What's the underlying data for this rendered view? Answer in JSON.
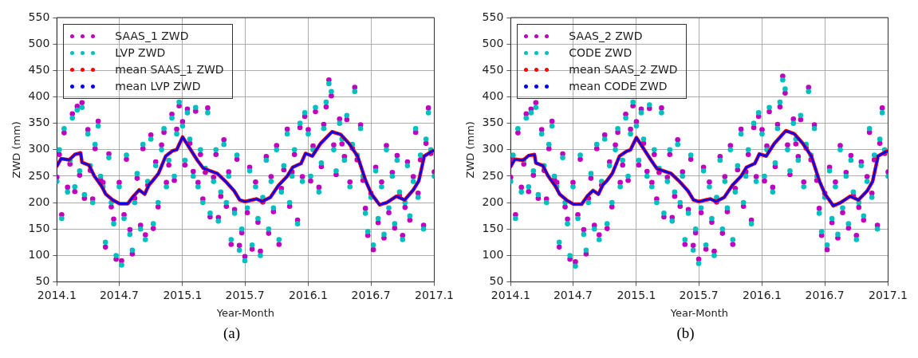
{
  "chart_data": [
    {
      "type": "scatter",
      "xlabel": "Year-Month",
      "ylabel": "ZWD (mm)",
      "annotations": [
        "(a)"
      ],
      "legend": "top left",
      "grid": true,
      "marker": "circle",
      "xlim": [
        "2014-01",
        "2017-01"
      ],
      "ylim": [
        50,
        550
      ],
      "xticks": [
        {
          "value": "2014-01",
          "label": "2014.1"
        },
        {
          "value": "2014-07",
          "label": "2014.7"
        },
        {
          "value": "2015-01",
          "label": "2015.1"
        },
        {
          "value": "2015-07",
          "label": "2015.7"
        },
        {
          "value": "2016-01",
          "label": "2016.1"
        },
        {
          "value": "2016-07",
          "label": "2016.7"
        },
        {
          "value": "2017-01",
          "label": "2017.1"
        }
      ],
      "yticks": [
        50,
        100,
        150,
        200,
        250,
        300,
        350,
        400,
        450,
        500,
        550
      ],
      "x": [
        "2014-01-01",
        "2014-01-08",
        "2014-01-15",
        "2014-01-22",
        "2014-02-01",
        "2014-02-08",
        "2014-02-15",
        "2014-02-22",
        "2014-03-01",
        "2014-03-08",
        "2014-03-15",
        "2014-03-22",
        "2014-04-01",
        "2014-04-08",
        "2014-04-15",
        "2014-04-22",
        "2014-05-01",
        "2014-05-08",
        "2014-05-15",
        "2014-05-22",
        "2014-06-01",
        "2014-06-08",
        "2014-06-15",
        "2014-06-22",
        "2014-07-01",
        "2014-07-08",
        "2014-07-15",
        "2014-07-22",
        "2014-08-01",
        "2014-08-08",
        "2014-08-15",
        "2014-08-22",
        "2014-09-01",
        "2014-09-08",
        "2014-09-15",
        "2014-09-22",
        "2014-10-01",
        "2014-10-08",
        "2014-10-15",
        "2014-10-22",
        "2014-11-01",
        "2014-11-08",
        "2014-11-15",
        "2014-11-22",
        "2014-12-01",
        "2014-12-08",
        "2014-12-15",
        "2014-12-22",
        "2015-01-01",
        "2015-01-08",
        "2015-01-15",
        "2015-01-22",
        "2015-02-01",
        "2015-02-08",
        "2015-02-15",
        "2015-02-22",
        "2015-03-01",
        "2015-03-08",
        "2015-03-15",
        "2015-03-22",
        "2015-04-01",
        "2015-04-08",
        "2015-04-15",
        "2015-04-22",
        "2015-05-01",
        "2015-05-08",
        "2015-05-15",
        "2015-05-22",
        "2015-06-01",
        "2015-06-08",
        "2015-06-15",
        "2015-06-22",
        "2015-07-01",
        "2015-07-08",
        "2015-07-15",
        "2015-07-22",
        "2015-08-01",
        "2015-08-08",
        "2015-08-15",
        "2015-08-22",
        "2015-09-01",
        "2015-09-08",
        "2015-09-15",
        "2015-09-22",
        "2015-10-01",
        "2015-10-08",
        "2015-10-15",
        "2015-10-22",
        "2015-11-01",
        "2015-11-08",
        "2015-11-15",
        "2015-11-22",
        "2015-12-01",
        "2015-12-08",
        "2015-12-15",
        "2015-12-22",
        "2016-01-01",
        "2016-01-08",
        "2016-01-15",
        "2016-01-22",
        "2016-02-01",
        "2016-02-08",
        "2016-02-15",
        "2016-02-22",
        "2016-03-01",
        "2016-03-08",
        "2016-03-15",
        "2016-03-22",
        "2016-04-01",
        "2016-04-08",
        "2016-04-15",
        "2016-04-22",
        "2016-05-01",
        "2016-05-08",
        "2016-05-15",
        "2016-05-22",
        "2016-06-01",
        "2016-06-08",
        "2016-06-15",
        "2016-06-22",
        "2016-07-01",
        "2016-07-08",
        "2016-07-15",
        "2016-07-22",
        "2016-08-01",
        "2016-08-08",
        "2016-08-15",
        "2016-08-22",
        "2016-09-01",
        "2016-09-08",
        "2016-09-15",
        "2016-09-22",
        "2016-10-01",
        "2016-10-08",
        "2016-10-15",
        "2016-10-22",
        "2016-11-01",
        "2016-11-08",
        "2016-11-15",
        "2016-11-22",
        "2016-12-01",
        "2016-12-08",
        "2016-12-15",
        "2016-12-22",
        "2017-01-01"
      ],
      "series": [
        {
          "name": "SAAS_1 ZWD",
          "color": "#bf00bf",
          "values": [
            248,
            291,
            177,
            332,
            229,
            273,
            368,
            221,
            382,
            252,
            389,
            208,
            338,
            261,
            207,
            302,
            354,
            243,
            238,
            116,
            292,
            192,
            169,
            93,
            238,
            90,
            177,
            282,
            149,
            103,
            208,
            246,
            157,
            302,
            139,
            233,
            328,
            151,
            277,
            192,
            309,
            333,
            238,
            271,
            367,
            242,
            339,
            383,
            353,
            271,
            377,
            312,
            259,
            373,
            238,
            291,
            207,
            257,
            379,
            173,
            248,
            291,
            172,
            212,
            319,
            193,
            258,
            121,
            187,
            282,
            119,
            143,
            98,
            181,
            267,
            112,
            239,
            163,
            108,
            201,
            287,
            142,
            249,
            183,
            308,
            121,
            227,
            262,
            339,
            193,
            258,
            291,
            167,
            342,
            249,
            363,
            338,
            241,
            307,
            372,
            229,
            268,
            348,
            381,
            432,
            402,
            309,
            253,
            358,
            311,
            287,
            357,
            239,
            303,
            418,
            281,
            347,
            242,
            189,
            138,
            218,
            111,
            267,
            162,
            239,
            133,
            308,
            181,
            257,
            152,
            289,
            213,
            138,
            191,
            277,
            167,
            249,
            333,
            218,
            281,
            157,
            312,
            379,
            293,
            258
          ]
        },
        {
          "name": "LVP ZWD",
          "color": "#00bfbf",
          "values": [
            240,
            300,
            170,
            340,
            220,
            280,
            360,
            230,
            375,
            260,
            380,
            215,
            330,
            270,
            200,
            310,
            345,
            250,
            230,
            125,
            285,
            200,
            160,
            100,
            230,
            82,
            170,
            290,
            140,
            110,
            200,
            255,
            150,
            310,
            130,
            240,
            320,
            160,
            270,
            200,
            300,
            340,
            230,
            280,
            360,
            250,
            330,
            390,
            345,
            280,
            370,
            320,
            250,
            380,
            230,
            300,
            200,
            265,
            370,
            180,
            240,
            300,
            165,
            220,
            310,
            200,
            250,
            130,
            180,
            290,
            110,
            150,
            90,
            190,
            260,
            120,
            230,
            170,
            100,
            210,
            280,
            150,
            240,
            190,
            300,
            130,
            220,
            270,
            330,
            200,
            250,
            300,
            160,
            350,
            240,
            370,
            330,
            250,
            300,
            380,
            220,
            275,
            340,
            390,
            425,
            410,
            300,
            260,
            350,
            320,
            280,
            365,
            230,
            310,
            410,
            290,
            340,
            250,
            180,
            145,
            210,
            120,
            260,
            170,
            230,
            140,
            300,
            190,
            250,
            160,
            280,
            220,
            130,
            200,
            270,
            175,
            240,
            340,
            210,
            290,
            150,
            320,
            370,
            300,
            250
          ]
        },
        {
          "name": "mean SAAS_1 ZWD",
          "color": "#ff0000",
          "type": "line",
          "marker": "none",
          "x": [
            "2014-01-01",
            "2014-01-13",
            "2014-02-06",
            "2014-02-22",
            "2014-03-11",
            "2014-03-15",
            "2014-04-04",
            "2014-04-20",
            "2014-05-11",
            "2014-05-23",
            "2014-06-12",
            "2014-07-02",
            "2014-07-26",
            "2014-08-11",
            "2014-08-28",
            "2014-09-13",
            "2014-09-25",
            "2014-10-07",
            "2014-10-23",
            "2014-11-13",
            "2014-12-03",
            "2014-12-15",
            "2015-01-01",
            "2015-02-14",
            "2015-03-02",
            "2015-04-12",
            "2015-05-06",
            "2015-05-31",
            "2015-06-16",
            "2015-07-02",
            "2015-08-04",
            "2015-08-20",
            "2015-09-13",
            "2015-10-07",
            "2015-11-01",
            "2015-11-17",
            "2015-12-11",
            "2015-12-24",
            "2016-01-13",
            "2016-02-06",
            "2016-03-10",
            "2016-04-04",
            "2016-04-28",
            "2016-05-23",
            "2016-06-16",
            "2016-07-02",
            "2016-07-26",
            "2016-08-16",
            "2016-09-13",
            "2016-10-07",
            "2016-11-01",
            "2016-11-17",
            "2016-12-03",
            "2016-12-28"
          ],
          "values": [
            269,
            283,
            281,
            291,
            294,
            276,
            271,
            250,
            231,
            216,
            205,
            198,
            198,
            212,
            224,
            216,
            233,
            242,
            255,
            288,
            298,
            300,
            324,
            279,
            265,
            255,
            240,
            222,
            205,
            202,
            207,
            202,
            210,
            233,
            250,
            267,
            274,
            293,
            288,
            312,
            334,
            329,
            312,
            288,
            241,
            217,
            196,
            200,
            212,
            205,
            224,
            241,
            288,
            298
          ]
        },
        {
          "name": "mean LVP ZWD",
          "color": "#0000ff",
          "type": "line",
          "marker": "none",
          "x": [
            "2014-01-01",
            "2014-01-13",
            "2014-02-06",
            "2014-02-22",
            "2014-03-11",
            "2014-03-15",
            "2014-04-04",
            "2014-04-20",
            "2014-05-11",
            "2014-05-23",
            "2014-06-12",
            "2014-07-02",
            "2014-07-26",
            "2014-08-11",
            "2014-08-28",
            "2014-09-13",
            "2014-09-25",
            "2014-10-07",
            "2014-10-23",
            "2014-11-13",
            "2014-12-03",
            "2014-12-15",
            "2015-01-01",
            "2015-02-14",
            "2015-03-02",
            "2015-04-12",
            "2015-05-06",
            "2015-05-31",
            "2015-06-16",
            "2015-07-02",
            "2015-08-04",
            "2015-08-20",
            "2015-09-13",
            "2015-10-07",
            "2015-11-01",
            "2015-11-17",
            "2015-12-11",
            "2015-12-24",
            "2016-01-13",
            "2016-02-06",
            "2016-03-10",
            "2016-04-04",
            "2016-04-28",
            "2016-05-23",
            "2016-06-16",
            "2016-07-02",
            "2016-07-26",
            "2016-08-16",
            "2016-09-13",
            "2016-10-07",
            "2016-11-01",
            "2016-11-17",
            "2016-12-03",
            "2016-12-28"
          ],
          "values": [
            269,
            283,
            281,
            291,
            294,
            276,
            271,
            250,
            231,
            216,
            205,
            198,
            198,
            212,
            224,
            216,
            233,
            242,
            255,
            288,
            298,
            300,
            324,
            279,
            265,
            255,
            240,
            222,
            205,
            202,
            207,
            202,
            210,
            233,
            250,
            267,
            274,
            293,
            288,
            312,
            334,
            329,
            312,
            288,
            241,
            217,
            196,
            200,
            212,
            205,
            224,
            241,
            288,
            298
          ]
        }
      ]
    },
    {
      "type": "scatter",
      "xlabel": "Year-Month",
      "ylabel": "ZWD (mm)",
      "annotations": [
        "(b)"
      ],
      "legend": "top left",
      "grid": true,
      "marker": "circle",
      "xlim": [
        "2014-01",
        "2017-01"
      ],
      "ylim": [
        50,
        550
      ],
      "xticks": [
        {
          "value": "2014-01",
          "label": "2014.1"
        },
        {
          "value": "2014-07",
          "label": "2014.7"
        },
        {
          "value": "2015-01",
          "label": "2015.1"
        },
        {
          "value": "2015-07",
          "label": "2015.7"
        },
        {
          "value": "2016-01",
          "label": "2016.1"
        },
        {
          "value": "2016-07",
          "label": "2016.7"
        },
        {
          "value": "2017-01",
          "label": "2017.1"
        }
      ],
      "yticks": [
        50,
        100,
        150,
        200,
        250,
        300,
        350,
        400,
        450,
        500,
        550
      ],
      "x": [
        "2014-01-01",
        "2014-01-08",
        "2014-01-15",
        "2014-01-22",
        "2014-02-01",
        "2014-02-08",
        "2014-02-15",
        "2014-02-22",
        "2014-03-01",
        "2014-03-08",
        "2014-03-15",
        "2014-03-22",
        "2014-04-01",
        "2014-04-08",
        "2014-04-15",
        "2014-04-22",
        "2014-05-01",
        "2014-05-08",
        "2014-05-15",
        "2014-05-22",
        "2014-06-01",
        "2014-06-08",
        "2014-06-15",
        "2014-06-22",
        "2014-07-01",
        "2014-07-08",
        "2014-07-15",
        "2014-07-22",
        "2014-08-01",
        "2014-08-08",
        "2014-08-15",
        "2014-08-22",
        "2014-09-01",
        "2014-09-08",
        "2014-09-15",
        "2014-09-22",
        "2014-10-01",
        "2014-10-08",
        "2014-10-15",
        "2014-10-22",
        "2014-11-01",
        "2014-11-08",
        "2014-11-15",
        "2014-11-22",
        "2014-12-01",
        "2014-12-08",
        "2014-12-15",
        "2014-12-22",
        "2015-01-01",
        "2015-01-08",
        "2015-01-15",
        "2015-01-22",
        "2015-02-01",
        "2015-02-08",
        "2015-02-15",
        "2015-02-22",
        "2015-03-01",
        "2015-03-08",
        "2015-03-15",
        "2015-03-22",
        "2015-04-01",
        "2015-04-08",
        "2015-04-15",
        "2015-04-22",
        "2015-05-01",
        "2015-05-08",
        "2015-05-15",
        "2015-05-22",
        "2015-06-01",
        "2015-06-08",
        "2015-06-15",
        "2015-06-22",
        "2015-07-01",
        "2015-07-08",
        "2015-07-15",
        "2015-07-22",
        "2015-08-01",
        "2015-08-08",
        "2015-08-15",
        "2015-08-22",
        "2015-09-01",
        "2015-09-08",
        "2015-09-15",
        "2015-09-22",
        "2015-10-01",
        "2015-10-08",
        "2015-10-15",
        "2015-10-22",
        "2015-11-01",
        "2015-11-08",
        "2015-11-15",
        "2015-11-22",
        "2015-12-01",
        "2015-12-08",
        "2015-12-15",
        "2015-12-22",
        "2016-01-01",
        "2016-01-08",
        "2016-01-15",
        "2016-01-22",
        "2016-02-01",
        "2016-02-08",
        "2016-02-15",
        "2016-02-22",
        "2016-03-01",
        "2016-03-08",
        "2016-03-15",
        "2016-03-22",
        "2016-04-01",
        "2016-04-08",
        "2016-04-15",
        "2016-04-22",
        "2016-05-01",
        "2016-05-08",
        "2016-05-15",
        "2016-05-22",
        "2016-06-01",
        "2016-06-08",
        "2016-06-15",
        "2016-06-22",
        "2016-07-01",
        "2016-07-08",
        "2016-07-15",
        "2016-07-22",
        "2016-08-01",
        "2016-08-08",
        "2016-08-15",
        "2016-08-22",
        "2016-09-01",
        "2016-09-08",
        "2016-09-15",
        "2016-09-22",
        "2016-10-01",
        "2016-10-08",
        "2016-10-15",
        "2016-10-22",
        "2016-11-01",
        "2016-11-08",
        "2016-11-15",
        "2016-11-22",
        "2016-12-01",
        "2016-12-08",
        "2016-12-15",
        "2016-12-22",
        "2017-01-01"
      ],
      "series": [
        {
          "name": "SAAS_2 ZWD",
          "color": "#bf00bf",
          "values": [
            248,
            281,
            177,
            332,
            229,
            273,
            368,
            221,
            377,
            252,
            389,
            208,
            338,
            261,
            207,
            302,
            354,
            243,
            238,
            116,
            292,
            192,
            169,
            93,
            238,
            88,
            177,
            282,
            149,
            103,
            208,
            246,
            157,
            302,
            139,
            233,
            328,
            151,
            277,
            192,
            309,
            333,
            238,
            271,
            367,
            242,
            339,
            383,
            353,
            271,
            377,
            312,
            259,
            378,
            238,
            291,
            207,
            257,
            379,
            173,
            248,
            291,
            172,
            212,
            319,
            193,
            258,
            121,
            187,
            282,
            119,
            143,
            93,
            181,
            267,
            112,
            239,
            163,
            108,
            201,
            287,
            142,
            249,
            183,
            308,
            121,
            227,
            262,
            339,
            193,
            258,
            291,
            167,
            342,
            249,
            363,
            338,
            241,
            307,
            372,
            229,
            268,
            348,
            381,
            439,
            407,
            309,
            253,
            358,
            311,
            287,
            357,
            239,
            303,
            418,
            281,
            347,
            242,
            189,
            138,
            218,
            111,
            267,
            162,
            239,
            133,
            308,
            181,
            257,
            152,
            289,
            213,
            138,
            191,
            277,
            167,
            249,
            333,
            218,
            281,
            157,
            312,
            379,
            293,
            258
          ]
        },
        {
          "name": "CODE ZWD",
          "color": "#00bfbf",
          "values": [
            240,
            290,
            170,
            340,
            220,
            280,
            360,
            230,
            370,
            260,
            380,
            215,
            330,
            270,
            200,
            310,
            345,
            250,
            230,
            125,
            285,
            200,
            160,
            100,
            230,
            80,
            170,
            290,
            140,
            110,
            200,
            255,
            150,
            310,
            130,
            240,
            320,
            160,
            270,
            200,
            300,
            340,
            230,
            280,
            360,
            250,
            330,
            390,
            345,
            280,
            370,
            320,
            250,
            385,
            230,
            300,
            200,
            265,
            370,
            180,
            240,
            300,
            165,
            220,
            310,
            200,
            250,
            130,
            180,
            290,
            110,
            150,
            85,
            190,
            260,
            120,
            230,
            170,
            100,
            210,
            280,
            150,
            240,
            190,
            300,
            130,
            220,
            270,
            330,
            200,
            250,
            300,
            160,
            350,
            240,
            370,
            330,
            250,
            300,
            380,
            220,
            275,
            340,
            390,
            432,
            415,
            300,
            260,
            350,
            320,
            280,
            365,
            230,
            310,
            410,
            290,
            340,
            250,
            180,
            145,
            210,
            120,
            260,
            170,
            230,
            140,
            300,
            190,
            250,
            160,
            280,
            220,
            130,
            200,
            270,
            175,
            240,
            340,
            210,
            290,
            150,
            320,
            370,
            300,
            250
          ]
        },
        {
          "name": "mean SAAS_2 ZWD",
          "color": "#ff0000",
          "type": "line",
          "marker": "none",
          "x": [
            "2014-01-01",
            "2014-01-13",
            "2014-02-06",
            "2014-02-22",
            "2014-03-11",
            "2014-03-15",
            "2014-04-04",
            "2014-04-20",
            "2014-05-11",
            "2014-05-23",
            "2014-06-12",
            "2014-07-02",
            "2014-07-26",
            "2014-08-11",
            "2014-08-28",
            "2014-09-13",
            "2014-09-25",
            "2014-10-07",
            "2014-10-23",
            "2014-11-13",
            "2014-12-03",
            "2014-12-15",
            "2015-01-01",
            "2015-02-14",
            "2015-03-02",
            "2015-04-12",
            "2015-05-06",
            "2015-05-31",
            "2015-06-16",
            "2015-07-02",
            "2015-08-04",
            "2015-08-20",
            "2015-09-13",
            "2015-10-07",
            "2015-11-01",
            "2015-11-17",
            "2015-12-11",
            "2015-12-24",
            "2016-01-13",
            "2016-02-06",
            "2016-03-10",
            "2016-04-04",
            "2016-04-28",
            "2016-05-23",
            "2016-06-16",
            "2016-07-02",
            "2016-07-26",
            "2016-08-16",
            "2016-09-13",
            "2016-10-07",
            "2016-11-01",
            "2016-11-17",
            "2016-12-03",
            "2016-12-28"
          ],
          "values": [
            268,
            282,
            280,
            289,
            291,
            275,
            270,
            250,
            231,
            216,
            205,
            197,
            197,
            212,
            223,
            216,
            233,
            241,
            255,
            288,
            297,
            300,
            323,
            279,
            264,
            255,
            240,
            222,
            205,
            202,
            207,
            202,
            210,
            233,
            250,
            267,
            274,
            292,
            288,
            312,
            336,
            330,
            312,
            288,
            240,
            216,
            194,
            200,
            212,
            205,
            222,
            240,
            288,
            297
          ]
        },
        {
          "name": "mean CODE ZWD",
          "color": "#0000ff",
          "type": "line",
          "marker": "none",
          "x": [
            "2014-01-01",
            "2014-01-13",
            "2014-02-06",
            "2014-02-22",
            "2014-03-11",
            "2014-03-15",
            "2014-04-04",
            "2014-04-20",
            "2014-05-11",
            "2014-05-23",
            "2014-06-12",
            "2014-07-02",
            "2014-07-26",
            "2014-08-11",
            "2014-08-28",
            "2014-09-13",
            "2014-09-25",
            "2014-10-07",
            "2014-10-23",
            "2014-11-13",
            "2014-12-03",
            "2014-12-15",
            "2015-01-01",
            "2015-02-14",
            "2015-03-02",
            "2015-04-12",
            "2015-05-06",
            "2015-05-31",
            "2015-06-16",
            "2015-07-02",
            "2015-08-04",
            "2015-08-20",
            "2015-09-13",
            "2015-10-07",
            "2015-11-01",
            "2015-11-17",
            "2015-12-11",
            "2015-12-24",
            "2016-01-13",
            "2016-02-06",
            "2016-03-10",
            "2016-04-04",
            "2016-04-28",
            "2016-05-23",
            "2016-06-16",
            "2016-07-02",
            "2016-07-26",
            "2016-08-16",
            "2016-09-13",
            "2016-10-07",
            "2016-11-01",
            "2016-11-17",
            "2016-12-03",
            "2016-12-28"
          ],
          "values": [
            268,
            282,
            280,
            289,
            291,
            275,
            270,
            250,
            231,
            216,
            205,
            197,
            197,
            212,
            223,
            216,
            233,
            241,
            255,
            288,
            297,
            300,
            323,
            279,
            264,
            255,
            240,
            222,
            205,
            202,
            207,
            202,
            210,
            233,
            250,
            267,
            274,
            292,
            288,
            312,
            336,
            330,
            312,
            288,
            240,
            216,
            194,
            200,
            212,
            205,
            222,
            240,
            288,
            297
          ]
        }
      ]
    }
  ]
}
